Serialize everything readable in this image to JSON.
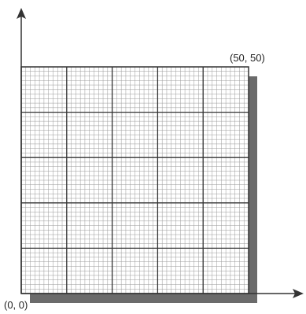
{
  "labels": {
    "origin": "(0, 0)",
    "top_right": "(50, 50)"
  },
  "grid": {
    "x_range": [
      0,
      50
    ],
    "y_range": [
      0,
      50
    ],
    "major_divisions": 5,
    "minor_per_major": 10
  },
  "colors": {
    "line": "#333333",
    "minor_line": "#9a9a9a",
    "shadow": "#6b6b6b",
    "paper": "#ffffff"
  }
}
